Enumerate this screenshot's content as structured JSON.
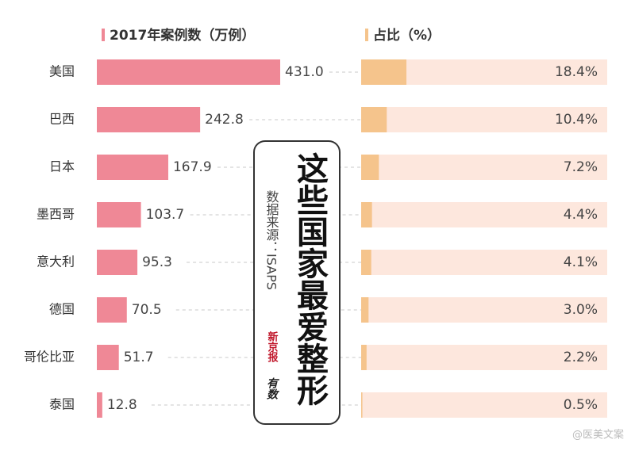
{
  "chart_data": [
    {
      "type": "hbar",
      "title": "2017年案例数（万例）",
      "categories": [
        "美国",
        "巴西",
        "日本",
        "墨西哥",
        "意大利",
        "德国",
        "哥伦比亚",
        "泰国"
      ],
      "values": [
        431.0,
        242.8,
        167.9,
        103.7,
        95.3,
        70.5,
        51.7,
        12.8
      ],
      "value_labels": [
        "431.0",
        "242.8",
        "167.9",
        "103.7",
        "95.3",
        "70.5",
        "51.7",
        "12.8"
      ],
      "color": "#ef8896",
      "xlim": [
        0,
        431
      ]
    },
    {
      "type": "hbar-track",
      "title": "占比（%）",
      "values": [
        18.4,
        10.4,
        7.2,
        4.4,
        4.1,
        3.0,
        2.2,
        0.5
      ],
      "value_labels": [
        "18.4%",
        "10.4%",
        "7.2%",
        "4.4%",
        "4.1%",
        "3.0%",
        "2.2%",
        "0.5%"
      ],
      "color": "#f5c48c",
      "track_color": "#fde7dd",
      "xlim": [
        0,
        100
      ]
    }
  ],
  "headline": "这些国家最爱整形",
  "source": "数据来源：ISAPS",
  "logo": [
    "新京报",
    "有数"
  ],
  "watermark": "@医美文案"
}
